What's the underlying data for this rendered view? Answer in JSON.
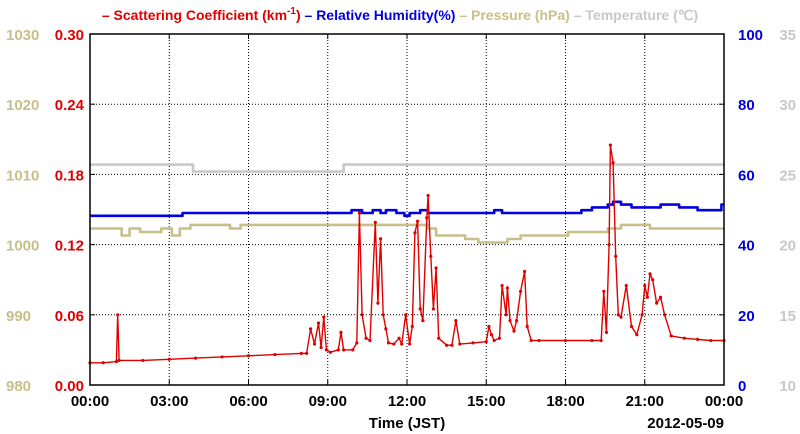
{
  "chart_data": {
    "type": "line",
    "legend_placement": "top",
    "legend": [
      {
        "label": "Scattering Coefficient (km",
        "sup": "-1",
        "suffix": ")",
        "color": "#e00000"
      },
      {
        "label": "Relative Humidity(%)",
        "sup": "",
        "suffix": "",
        "color": "#0000e0"
      },
      {
        "label": "Pressure (hPa)",
        "sup": "",
        "suffix": "",
        "color": "#c8bf88"
      },
      {
        "label": "Temperature (℃)",
        "sup": "",
        "suffix": "",
        "color": "#c8c8c8"
      }
    ],
    "xlabel": "Time (JST)",
    "date_label": "2012-05-09",
    "x_ticks": [
      "00:00",
      "03:00",
      "06:00",
      "09:00",
      "12:00",
      "15:00",
      "18:00",
      "21:00",
      "00:00"
    ],
    "xlim_hours": [
      0,
      24
    ],
    "grid": true,
    "axes": {
      "scattering": {
        "ticks": [
          "0.00",
          "0.06",
          "0.12",
          "0.18",
          "0.24",
          "0.30"
        ],
        "ylim": [
          0,
          0.3
        ],
        "color": "#e00000"
      },
      "pressure": {
        "ticks": [
          "980",
          "990",
          "1000",
          "1010",
          "1020",
          "1030"
        ],
        "ylim": [
          980,
          1030
        ],
        "color": "#c8bf88"
      },
      "humidity": {
        "ticks": [
          "0",
          "20",
          "40",
          "60",
          "80",
          "100"
        ],
        "ylim": [
          0,
          100
        ],
        "color": "#0000e0"
      },
      "temperature": {
        "ticks": [
          "10",
          "15",
          "20",
          "25",
          "30",
          "35"
        ],
        "ylim": [
          10,
          35
        ],
        "color": "#c8c8c8"
      }
    },
    "series": [
      {
        "name": "Temperature",
        "axis": "temperature",
        "color": "#c8c8c8",
        "step": true,
        "points": [
          [
            0,
            25.7
          ],
          [
            3.9,
            25.7
          ],
          [
            3.9,
            25.2
          ],
          [
            9.6,
            25.2
          ],
          [
            9.6,
            25.7
          ],
          [
            24,
            25.7
          ]
        ]
      },
      {
        "name": "Pressure",
        "axis": "pressure",
        "color": "#c8bf88",
        "step": true,
        "points": [
          [
            0,
            1002.3
          ],
          [
            1.2,
            1002.3
          ],
          [
            1.2,
            1001.3
          ],
          [
            1.5,
            1001.3
          ],
          [
            1.5,
            1002.3
          ],
          [
            1.9,
            1002.3
          ],
          [
            1.9,
            1001.8
          ],
          [
            2.7,
            1001.8
          ],
          [
            2.7,
            1002.3
          ],
          [
            3.1,
            1002.3
          ],
          [
            3.1,
            1001.3
          ],
          [
            3.4,
            1001.3
          ],
          [
            3.4,
            1002.3
          ],
          [
            3.8,
            1002.3
          ],
          [
            3.8,
            1002.8
          ],
          [
            5.3,
            1002.8
          ],
          [
            5.3,
            1002.3
          ],
          [
            5.7,
            1002.3
          ],
          [
            5.7,
            1002.8
          ],
          [
            12.8,
            1002.8
          ],
          [
            12.8,
            1002.3
          ],
          [
            13.1,
            1002.3
          ],
          [
            13.1,
            1001.3
          ],
          [
            14.2,
            1001.3
          ],
          [
            14.2,
            1000.8
          ],
          [
            14.7,
            1000.8
          ],
          [
            14.7,
            1000.3
          ],
          [
            15.8,
            1000.3
          ],
          [
            15.8,
            1000.8
          ],
          [
            16.3,
            1000.8
          ],
          [
            16.3,
            1001.3
          ],
          [
            18.1,
            1001.3
          ],
          [
            18.1,
            1001.8
          ],
          [
            19.6,
            1001.8
          ],
          [
            19.6,
            1002.3
          ],
          [
            20.1,
            1002.3
          ],
          [
            20.1,
            1002.8
          ],
          [
            21.2,
            1002.8
          ],
          [
            21.2,
            1002.3
          ],
          [
            24,
            1002.3
          ]
        ]
      },
      {
        "name": "Relative Humidity",
        "axis": "humidity",
        "color": "#0000e0",
        "step": true,
        "points": [
          [
            0,
            48.2
          ],
          [
            3.5,
            48.2
          ],
          [
            3.5,
            49
          ],
          [
            9.9,
            49
          ],
          [
            9.9,
            49.8
          ],
          [
            10.3,
            49.8
          ],
          [
            10.3,
            49
          ],
          [
            10.7,
            49
          ],
          [
            10.7,
            49.8
          ],
          [
            11.0,
            49.8
          ],
          [
            11.0,
            49
          ],
          [
            11.2,
            49
          ],
          [
            11.2,
            49.8
          ],
          [
            11.6,
            49.8
          ],
          [
            11.6,
            49
          ],
          [
            11.9,
            49
          ],
          [
            11.9,
            48.2
          ],
          [
            12.1,
            48.2
          ],
          [
            12.1,
            49
          ],
          [
            12.5,
            49
          ],
          [
            12.5,
            49.8
          ],
          [
            12.8,
            49.8
          ],
          [
            12.8,
            49
          ],
          [
            15.3,
            49
          ],
          [
            15.3,
            49.8
          ],
          [
            15.6,
            49.8
          ],
          [
            15.6,
            49
          ],
          [
            18.6,
            49
          ],
          [
            18.6,
            49.8
          ],
          [
            19.0,
            49.8
          ],
          [
            19.0,
            50.6
          ],
          [
            19.6,
            50.6
          ],
          [
            19.6,
            51.4
          ],
          [
            19.8,
            51.4
          ],
          [
            19.8,
            52.2
          ],
          [
            20.1,
            52.2
          ],
          [
            20.1,
            51.4
          ],
          [
            20.5,
            51.4
          ],
          [
            20.5,
            50.6
          ],
          [
            21.6,
            50.6
          ],
          [
            21.6,
            51.4
          ],
          [
            22.3,
            51.4
          ],
          [
            22.3,
            50.6
          ],
          [
            23.0,
            50.6
          ],
          [
            23.0,
            49.8
          ],
          [
            23.9,
            49.8
          ],
          [
            23.9,
            51.4
          ],
          [
            24,
            51.4
          ]
        ]
      },
      {
        "name": "Scattering Coefficient",
        "axis": "scattering",
        "color": "#e00000",
        "step": false,
        "markers": true,
        "points": [
          [
            0,
            0.019
          ],
          [
            0.5,
            0.019
          ],
          [
            1.0,
            0.02
          ],
          [
            1.05,
            0.06
          ],
          [
            1.1,
            0.021
          ],
          [
            2,
            0.021
          ],
          [
            3,
            0.022
          ],
          [
            4,
            0.023
          ],
          [
            5,
            0.024
          ],
          [
            6,
            0.025
          ],
          [
            7,
            0.026
          ],
          [
            8,
            0.027
          ],
          [
            8.2,
            0.027
          ],
          [
            8.35,
            0.048
          ],
          [
            8.5,
            0.035
          ],
          [
            8.65,
            0.053
          ],
          [
            8.75,
            0.032
          ],
          [
            8.85,
            0.058
          ],
          [
            8.95,
            0.03
          ],
          [
            9.1,
            0.028
          ],
          [
            9.4,
            0.03
          ],
          [
            9.5,
            0.045
          ],
          [
            9.6,
            0.03
          ],
          [
            9.95,
            0.03
          ],
          [
            10.1,
            0.036
          ],
          [
            10.2,
            0.147
          ],
          [
            10.3,
            0.06
          ],
          [
            10.45,
            0.04
          ],
          [
            10.6,
            0.038
          ],
          [
            10.8,
            0.139
          ],
          [
            10.9,
            0.07
          ],
          [
            11.0,
            0.125
          ],
          [
            11.1,
            0.06
          ],
          [
            11.2,
            0.048
          ],
          [
            11.3,
            0.036
          ],
          [
            11.5,
            0.035
          ],
          [
            11.7,
            0.04
          ],
          [
            11.8,
            0.035
          ],
          [
            11.95,
            0.06
          ],
          [
            12.1,
            0.035
          ],
          [
            12.2,
            0.05
          ],
          [
            12.3,
            0.13
          ],
          [
            12.4,
            0.14
          ],
          [
            12.5,
            0.065
          ],
          [
            12.6,
            0.055
          ],
          [
            12.75,
            0.143
          ],
          [
            12.8,
            0.162
          ],
          [
            12.9,
            0.11
          ],
          [
            13.0,
            0.065
          ],
          [
            13.1,
            0.1
          ],
          [
            13.2,
            0.04
          ],
          [
            13.5,
            0.034
          ],
          [
            13.7,
            0.034
          ],
          [
            13.85,
            0.055
          ],
          [
            14.0,
            0.035
          ],
          [
            14.5,
            0.036
          ],
          [
            15.0,
            0.037
          ],
          [
            15.1,
            0.05
          ],
          [
            15.2,
            0.043
          ],
          [
            15.3,
            0.038
          ],
          [
            15.5,
            0.04
          ],
          [
            15.6,
            0.085
          ],
          [
            15.75,
            0.06
          ],
          [
            15.8,
            0.083
          ],
          [
            15.9,
            0.055
          ],
          [
            16.05,
            0.046
          ],
          [
            16.15,
            0.055
          ],
          [
            16.3,
            0.08
          ],
          [
            16.45,
            0.097
          ],
          [
            16.55,
            0.05
          ],
          [
            16.7,
            0.038
          ],
          [
            17,
            0.038
          ],
          [
            18,
            0.038
          ],
          [
            19,
            0.038
          ],
          [
            19.35,
            0.038
          ],
          [
            19.45,
            0.08
          ],
          [
            19.55,
            0.045
          ],
          [
            19.65,
            0.12
          ],
          [
            19.7,
            0.205
          ],
          [
            19.8,
            0.19
          ],
          [
            19.9,
            0.11
          ],
          [
            20.0,
            0.06
          ],
          [
            20.1,
            0.058
          ],
          [
            20.3,
            0.085
          ],
          [
            20.5,
            0.05
          ],
          [
            20.7,
            0.043
          ],
          [
            20.9,
            0.06
          ],
          [
            21.0,
            0.085
          ],
          [
            21.1,
            0.075
          ],
          [
            21.2,
            0.095
          ],
          [
            21.3,
            0.09
          ],
          [
            21.45,
            0.07
          ],
          [
            21.6,
            0.075
          ],
          [
            21.75,
            0.06
          ],
          [
            22.0,
            0.042
          ],
          [
            22.5,
            0.04
          ],
          [
            23,
            0.039
          ],
          [
            23.5,
            0.038
          ],
          [
            24,
            0.038
          ]
        ]
      }
    ]
  }
}
